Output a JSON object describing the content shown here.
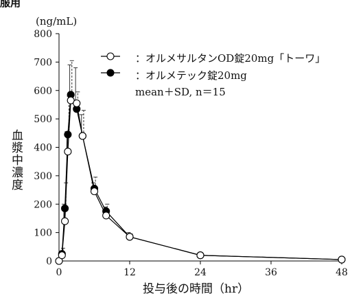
{
  "header": {
    "text": "服用"
  },
  "chart_data": {
    "type": "line",
    "unit": "(ng/mL)",
    "ylabel": "血漿中濃度",
    "xlabel": "投与後の時間（hr）",
    "xlim": [
      0,
      48
    ],
    "ylim": [
      0,
      800
    ],
    "xticks": [
      0,
      12,
      24,
      36,
      48
    ],
    "yticks": [
      0,
      100,
      200,
      300,
      400,
      500,
      600,
      700,
      800
    ],
    "grid": false,
    "legend_position": "top-right",
    "note": "mean＋SD,  n＝15",
    "series": [
      {
        "name": "：オルメサルタンOD錠20mg「トーワ」",
        "marker": "open-circle",
        "line_style": "solid",
        "error_bar_style": "solid",
        "color": "#000000",
        "x": [
          0,
          0.5,
          1,
          1.5,
          2,
          3,
          4,
          6,
          8,
          12,
          24,
          48
        ],
        "y": [
          0,
          20,
          140,
          385,
          565,
          555,
          440,
          245,
          160,
          85,
          20,
          5
        ],
        "sd": [
          0,
          15,
          60,
          70,
          125,
          125,
          75,
          30,
          30,
          15,
          3,
          2
        ]
      },
      {
        "name": "：オルメテック錠20mg",
        "marker": "filled-circle",
        "line_style": "solid",
        "error_bar_style": "dashed",
        "color": "#000000",
        "x": [
          0,
          0.5,
          1,
          1.5,
          2,
          3,
          4,
          6,
          8,
          12,
          24,
          48
        ],
        "y": [
          0,
          25,
          185,
          445,
          585,
          535,
          440,
          255,
          175,
          85,
          20,
          5
        ],
        "sd": [
          0,
          20,
          90,
          135,
          120,
          60,
          90,
          40,
          25,
          10,
          3,
          2
        ]
      }
    ]
  }
}
